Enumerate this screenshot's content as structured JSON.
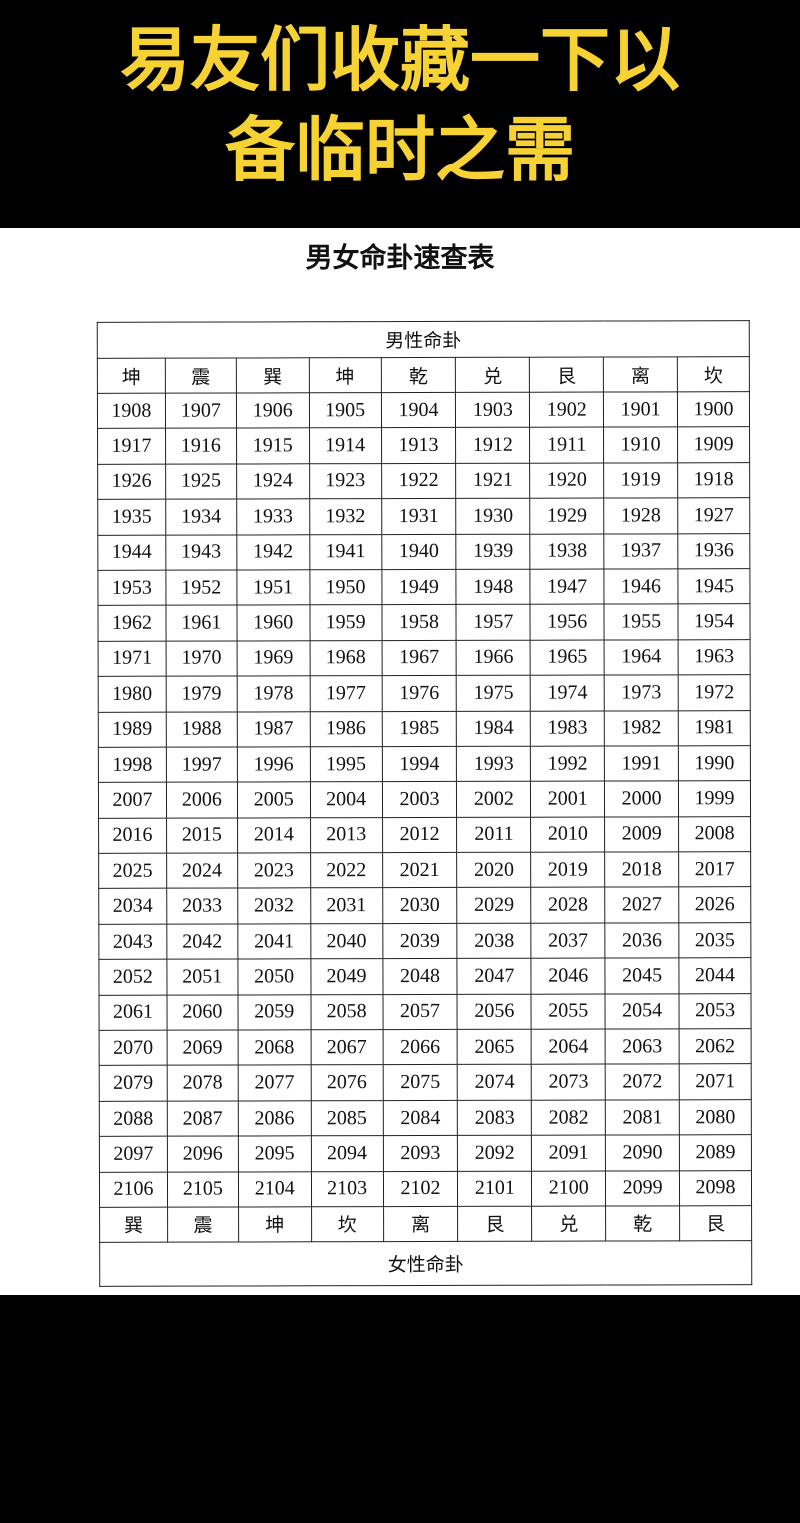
{
  "banner": {
    "line1": "易友们收藏一下以",
    "line2": "备临时之需"
  },
  "title": "男女命卦速查表",
  "table": {
    "male_label": "男性命卦",
    "female_label": "女性命卦",
    "male_gua": [
      "坤",
      "震",
      "巽",
      "坤",
      "乾",
      "兑",
      "艮",
      "离",
      "坎"
    ],
    "female_gua": [
      "巽",
      "震",
      "坤",
      "坎",
      "离",
      "艮",
      "兑",
      "乾",
      "艮"
    ],
    "rows": [
      [
        "1908",
        "1907",
        "1906",
        "1905",
        "1904",
        "1903",
        "1902",
        "1901",
        "1900"
      ],
      [
        "1917",
        "1916",
        "1915",
        "1914",
        "1913",
        "1912",
        "1911",
        "1910",
        "1909"
      ],
      [
        "1926",
        "1925",
        "1924",
        "1923",
        "1922",
        "1921",
        "1920",
        "1919",
        "1918"
      ],
      [
        "1935",
        "1934",
        "1933",
        "1932",
        "1931",
        "1930",
        "1929",
        "1928",
        "1927"
      ],
      [
        "1944",
        "1943",
        "1942",
        "1941",
        "1940",
        "1939",
        "1938",
        "1937",
        "1936"
      ],
      [
        "1953",
        "1952",
        "1951",
        "1950",
        "1949",
        "1948",
        "1947",
        "1946",
        "1945"
      ],
      [
        "1962",
        "1961",
        "1960",
        "1959",
        "1958",
        "1957",
        "1956",
        "1955",
        "1954"
      ],
      [
        "1971",
        "1970",
        "1969",
        "1968",
        "1967",
        "1966",
        "1965",
        "1964",
        "1963"
      ],
      [
        "1980",
        "1979",
        "1978",
        "1977",
        "1976",
        "1975",
        "1974",
        "1973",
        "1972"
      ],
      [
        "1989",
        "1988",
        "1987",
        "1986",
        "1985",
        "1984",
        "1983",
        "1982",
        "1981"
      ],
      [
        "1998",
        "1997",
        "1996",
        "1995",
        "1994",
        "1993",
        "1992",
        "1991",
        "1990"
      ],
      [
        "2007",
        "2006",
        "2005",
        "2004",
        "2003",
        "2002",
        "2001",
        "2000",
        "1999"
      ],
      [
        "2016",
        "2015",
        "2014",
        "2013",
        "2012",
        "2011",
        "2010",
        "2009",
        "2008"
      ],
      [
        "2025",
        "2024",
        "2023",
        "2022",
        "2021",
        "2020",
        "2019",
        "2018",
        "2017"
      ],
      [
        "2034",
        "2033",
        "2032",
        "2031",
        "2030",
        "2029",
        "2028",
        "2027",
        "2026"
      ],
      [
        "2043",
        "2042",
        "2041",
        "2040",
        "2039",
        "2038",
        "2037",
        "2036",
        "2035"
      ],
      [
        "2052",
        "2051",
        "2050",
        "2049",
        "2048",
        "2047",
        "2046",
        "2045",
        "2044"
      ],
      [
        "2061",
        "2060",
        "2059",
        "2058",
        "2057",
        "2056",
        "2055",
        "2054",
        "2053"
      ],
      [
        "2070",
        "2069",
        "2068",
        "2067",
        "2066",
        "2065",
        "2064",
        "2063",
        "2062"
      ],
      [
        "2079",
        "2078",
        "2077",
        "2076",
        "2075",
        "2074",
        "2073",
        "2072",
        "2071"
      ],
      [
        "2088",
        "2087",
        "2086",
        "2085",
        "2084",
        "2083",
        "2082",
        "2081",
        "2080"
      ],
      [
        "2097",
        "2096",
        "2095",
        "2094",
        "2093",
        "2092",
        "2091",
        "2090",
        "2089"
      ],
      [
        "2106",
        "2105",
        "2104",
        "2103",
        "2102",
        "2101",
        "2100",
        "2099",
        "2098"
      ]
    ]
  }
}
